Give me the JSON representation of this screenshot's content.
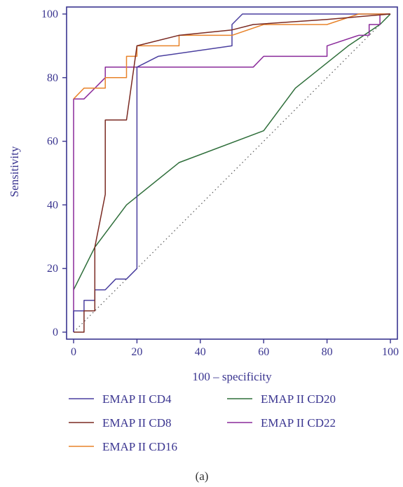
{
  "chart_data": {
    "type": "line",
    "title": "",
    "xlabel": "100 – specificity",
    "ylabel": "Sensitivity",
    "xlim": [
      0,
      100
    ],
    "ylim": [
      0,
      100
    ],
    "x_ticks": [
      "0",
      "20",
      "40",
      "60",
      "80",
      "100"
    ],
    "y_ticks": [
      "0",
      "20",
      "40",
      "60",
      "80",
      "100"
    ],
    "grid": false,
    "legend_position": "bottom",
    "caption": "(a)",
    "colors": {
      "axis": "#3a3590",
      "text": "#3a3590",
      "reference_line": "#555555"
    },
    "reference_line": {
      "style": "dotted",
      "points": [
        [
          0,
          0
        ],
        [
          100,
          100
        ]
      ]
    },
    "series": [
      {
        "name": "EMAP II CD4",
        "color": "#4a3f9f",
        "points": [
          [
            0,
            0
          ],
          [
            0,
            6.7
          ],
          [
            3.3,
            6.7
          ],
          [
            3.3,
            10
          ],
          [
            6.7,
            10
          ],
          [
            6.7,
            13.3
          ],
          [
            10,
            13.3
          ],
          [
            10,
            13.3
          ],
          [
            13.3,
            16.7
          ],
          [
            16.7,
            16.7
          ],
          [
            20,
            20
          ],
          [
            20,
            83.3
          ],
          [
            26.7,
            86.7
          ],
          [
            50,
            90
          ],
          [
            50,
            96.7
          ],
          [
            53.3,
            100
          ],
          [
            100,
            100
          ]
        ]
      },
      {
        "name": "EMAP II CD8",
        "color": "#7a2a22",
        "points": [
          [
            0,
            0
          ],
          [
            3.3,
            0
          ],
          [
            3.3,
            6.7
          ],
          [
            6.7,
            6.7
          ],
          [
            6.7,
            26.7
          ],
          [
            10,
            43.3
          ],
          [
            10,
            66.7
          ],
          [
            16.7,
            66.7
          ],
          [
            20,
            90
          ],
          [
            33.3,
            93.3
          ],
          [
            50,
            95
          ],
          [
            56.7,
            96.7
          ],
          [
            80,
            98.3
          ],
          [
            100,
            100
          ]
        ]
      },
      {
        "name": "EMAP II CD16",
        "color": "#e8832a",
        "points": [
          [
            0,
            73.3
          ],
          [
            3.3,
            76.7
          ],
          [
            6.7,
            76.7
          ],
          [
            10,
            76.7
          ],
          [
            10,
            80
          ],
          [
            16.7,
            80
          ],
          [
            16.7,
            86.7
          ],
          [
            20,
            86.7
          ],
          [
            20,
            90
          ],
          [
            33.3,
            90
          ],
          [
            33.3,
            93.3
          ],
          [
            50,
            93.3
          ],
          [
            60,
            96.7
          ],
          [
            80,
            96.7
          ],
          [
            90,
            100
          ],
          [
            100,
            100
          ]
        ]
      },
      {
        "name": "EMAP II CD20",
        "color": "#2e6e3a",
        "points": [
          [
            0,
            13.3
          ],
          [
            6.7,
            26.7
          ],
          [
            16.7,
            40
          ],
          [
            33.3,
            53.3
          ],
          [
            60,
            63.3
          ],
          [
            70,
            76.7
          ],
          [
            86.7,
            90
          ],
          [
            96.7,
            96.7
          ],
          [
            100,
            100
          ]
        ]
      },
      {
        "name": "EMAP II CD22",
        "color": "#8a2a9a",
        "points": [
          [
            0,
            0
          ],
          [
            0,
            73.3
          ],
          [
            3.3,
            73.3
          ],
          [
            6.7,
            76.7
          ],
          [
            10,
            80
          ],
          [
            10,
            83.3
          ],
          [
            56.7,
            83.3
          ],
          [
            60,
            86.7
          ],
          [
            80,
            86.7
          ],
          [
            80,
            90
          ],
          [
            90,
            93.3
          ],
          [
            93.3,
            93.3
          ],
          [
            93.3,
            96.7
          ],
          [
            96.7,
            96.7
          ],
          [
            96.7,
            100
          ],
          [
            100,
            100
          ]
        ]
      }
    ]
  }
}
